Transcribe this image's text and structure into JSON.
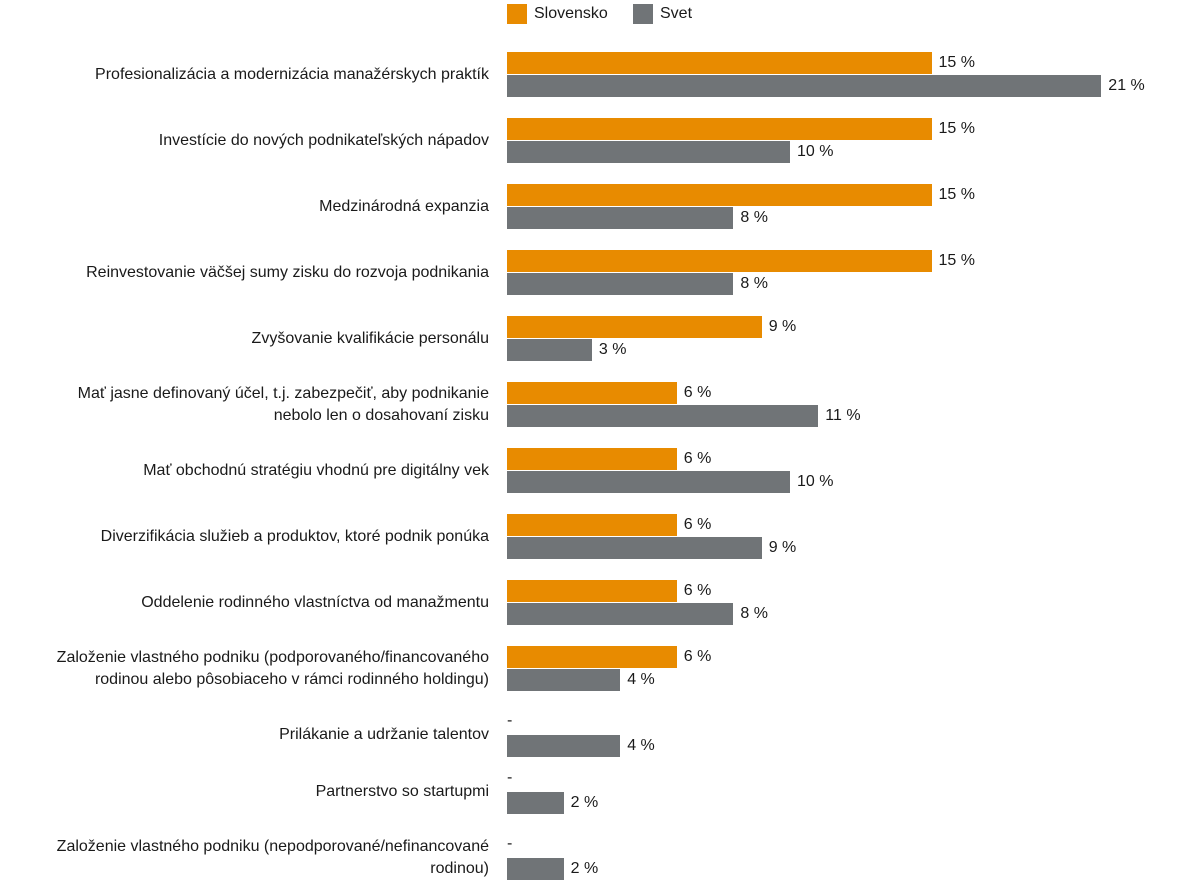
{
  "chart_data": {
    "type": "bar",
    "orientation": "horizontal",
    "title": "",
    "xlabel": "",
    "ylabel": "",
    "legend": "top",
    "grid": false,
    "unit_suffix": " %",
    "missing_label": "-",
    "categories": [
      "Profesionalizácia a modernizácia manažérskych praktík",
      "Investície do nových podnikateľských nápadov",
      "Medzinárodná expanzia",
      "Reinvestovanie väčšej sumy zisku do rozvoja podnikania",
      "Zvyšovanie kvalifikácie personálu",
      "Mať jasne definovaný účel, t.j. zabezpečiť, aby podnikanie\nnebolo len o dosahovaní zisku",
      "Mať obchodnú stratégiu vhodnú pre digitálny vek",
      "Diverzifikácia služieb a produktov, ktoré podnik ponúka",
      "Oddelenie rodinného vlastníctva od manažmentu",
      "Založenie vlastného podniku (podporovaného/financovaného\nrodinou alebo pôsobiaceho v rámci rodinného holdingu)",
      "Prilákanie a udržanie talentov",
      "Partnerstvo so startupmi",
      "Založenie vlastného podniku (nepodporované/nefinancované\nrodinou)"
    ],
    "series": [
      {
        "name": "Slovensko",
        "color": "#E88B00",
        "values": [
          15,
          15,
          15,
          15,
          9,
          6,
          6,
          6,
          6,
          6,
          null,
          null,
          null
        ]
      },
      {
        "name": "Svet",
        "color": "#707477",
        "values": [
          21,
          10,
          8,
          8,
          3,
          11,
          10,
          9,
          8,
          4,
          4,
          2,
          2
        ]
      }
    ]
  }
}
